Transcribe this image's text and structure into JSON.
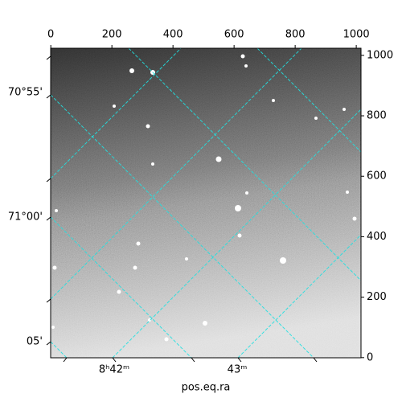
{
  "chart_data": {
    "type": "image",
    "xlabel": "pos.eq.ra",
    "xlim": [
      -0.5,
      1015.5
    ],
    "xticks": [
      0,
      200,
      400,
      600,
      800,
      1000
    ],
    "ylim": [
      -0.5,
      1023.5
    ],
    "yticks": [
      0,
      200,
      400,
      600,
      800,
      1000
    ],
    "ra_labels": [
      "8ʰ42ᵐ",
      "43ᵐ"
    ],
    "dec_labels": [
      "70°55'",
      "71°00'",
      "05'"
    ],
    "grid": true,
    "grid_color": "#22e0e0"
  }
}
